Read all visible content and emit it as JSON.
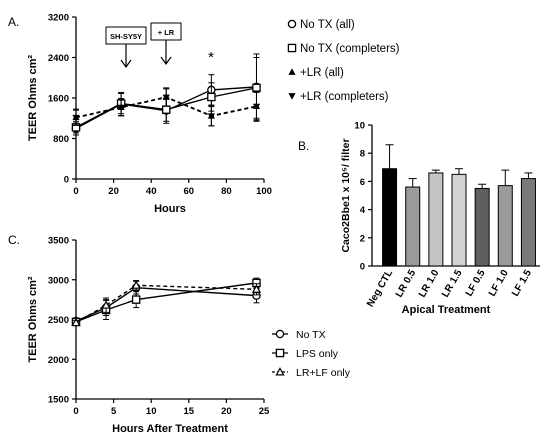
{
  "panels": {
    "a": {
      "label": "A.",
      "annotation_1": "SH-SY5Y",
      "annotation_2": "+ LR",
      "significance": "*"
    },
    "b": {
      "label": "B."
    },
    "c": {
      "label": "C."
    }
  },
  "chart_data": [
    {
      "id": "A",
      "type": "line",
      "xlabel": "Hours",
      "ylabel": "TEER Ohms cm²",
      "xlim": [
        0,
        100
      ],
      "ylim": [
        0,
        3200
      ],
      "x_ticks": [
        "0",
        "20",
        "40",
        "60",
        "80",
        "100"
      ],
      "y_ticks": [
        "0",
        "800",
        "1600",
        "2400",
        "3200"
      ],
      "series": [
        {
          "name": "No TX (all)",
          "marker": "circle-open",
          "dash": "solid",
          "x": [
            0,
            24,
            48,
            72,
            96
          ],
          "y": [
            1000,
            1480,
            1350,
            1760,
            1820
          ],
          "err": [
            130,
            230,
            250,
            300,
            650
          ]
        },
        {
          "name": "No TX (completers)",
          "marker": "square-open",
          "dash": "solid",
          "x": [
            0,
            24,
            48,
            72,
            96
          ],
          "y": [
            1020,
            1490,
            1370,
            1620,
            1800
          ],
          "err": [
            110,
            200,
            230,
            280,
            600
          ]
        },
        {
          "name": "+LR (all)",
          "marker": "triangle-up",
          "dash": "dashed",
          "x": [
            0,
            24,
            48,
            72,
            96
          ],
          "y": [
            1220,
            1420,
            1620,
            1250,
            1440
          ],
          "err": [
            160,
            170,
            180,
            200,
            300
          ]
        },
        {
          "name": "+LR (completers)",
          "marker": "triangle-down",
          "dash": "dashed",
          "x": [
            0,
            24,
            48,
            72,
            96
          ],
          "y": [
            1210,
            1410,
            1610,
            1240,
            1430
          ],
          "err": [
            150,
            160,
            170,
            190,
            280
          ]
        }
      ]
    },
    {
      "id": "B",
      "type": "bar",
      "categories": [
        "Neg CTL",
        "LR 0.5",
        "LR 1.0",
        "LR 1.5",
        "LF 0.5",
        "LF 1.0",
        "LF 1.5"
      ],
      "values": [
        6.9,
        5.6,
        6.6,
        6.5,
        5.5,
        5.7,
        6.2
      ],
      "errors": [
        1.7,
        0.6,
        0.2,
        0.4,
        0.3,
        1.1,
        0.4
      ],
      "colors": [
        "#000000",
        "#9b9b9b",
        "#c4c4c4",
        "#d2d2d2",
        "#5f5f5f",
        "#9b9b9b",
        "#7a7a7a"
      ],
      "ylabel": "Caco2Bbe1 x 10⁵/ filter",
      "xlabel": "Apical Treatment",
      "ylim": [
        0,
        10
      ],
      "y_ticks": [
        "0",
        "2",
        "4",
        "6",
        "8",
        "10"
      ]
    },
    {
      "id": "C",
      "type": "line",
      "xlabel": "Hours After Treatment",
      "ylabel": "TEER Ohms cm²",
      "xlim": [
        0,
        25
      ],
      "ylim": [
        1500,
        3500
      ],
      "x_ticks": [
        "0",
        "5",
        "10",
        "15",
        "20",
        "25"
      ],
      "y_ticks": [
        "1500",
        "2000",
        "2500",
        "3000",
        "3500"
      ],
      "series": [
        {
          "name": "No TX",
          "marker": "circle-open",
          "dash": "solid",
          "x": [
            0,
            4,
            8,
            24
          ],
          "y": [
            2480,
            2650,
            2900,
            2800
          ],
          "err": [
            30,
            100,
            80,
            90
          ]
        },
        {
          "name": "LPS only",
          "marker": "square-open",
          "dash": "solid",
          "x": [
            0,
            4,
            8,
            24
          ],
          "y": [
            2470,
            2620,
            2750,
            2960
          ],
          "err": [
            30,
            120,
            100,
            60
          ]
        },
        {
          "name": "LR+LF only",
          "marker": "triangle-open",
          "dash": "dashed",
          "x": [
            0,
            4,
            8,
            24
          ],
          "y": [
            2460,
            2680,
            2930,
            2880
          ],
          "err": [
            30,
            90,
            60,
            70
          ]
        }
      ]
    }
  ]
}
